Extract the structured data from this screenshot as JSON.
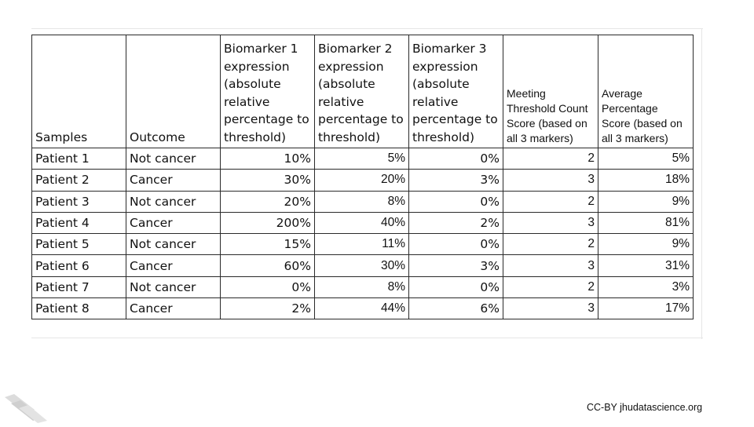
{
  "table": {
    "headers": [
      "Samples",
      "Outcome",
      "Biomarker 1 expression (absolute relative percentage to threshold)",
      "Biomarker 2 expression (absolute relative percentage to threshold)",
      "Biomarker 3 expression (absolute relative percentage to threshold)",
      "Meeting Threshold Count Score (based on all 3 markers)",
      "Average Percentage Score (based on all 3 markers)"
    ],
    "rows": [
      [
        "Patient 1",
        "Not cancer",
        "10%",
        "5%",
        "0%",
        "2",
        "5%"
      ],
      [
        "Patient 2",
        "Cancer",
        "30%",
        "20%",
        "3%",
        "3",
        "18%"
      ],
      [
        "Patient 3",
        "Not cancer",
        "20%",
        "8%",
        "0%",
        "2",
        "9%"
      ],
      [
        "Patient 4",
        "Cancer",
        "200%",
        "40%",
        "2%",
        "3",
        "81%"
      ],
      [
        "Patient 5",
        "Not cancer",
        "15%",
        "11%",
        "0%",
        "2",
        "9%"
      ],
      [
        "Patient 6",
        "Cancer",
        "60%",
        "30%",
        "3%",
        "3",
        "31%"
      ],
      [
        "Patient 7",
        "Not cancer",
        "0%",
        "8%",
        "0%",
        "2",
        "3%"
      ],
      [
        "Patient 8",
        "Cancer",
        "2%",
        "44%",
        "6%",
        "3",
        "17%"
      ]
    ]
  },
  "footer": {
    "credit": "CC-BY jhudatascience.org",
    "logo_icon": "stacked-slabs-logo-icon"
  }
}
